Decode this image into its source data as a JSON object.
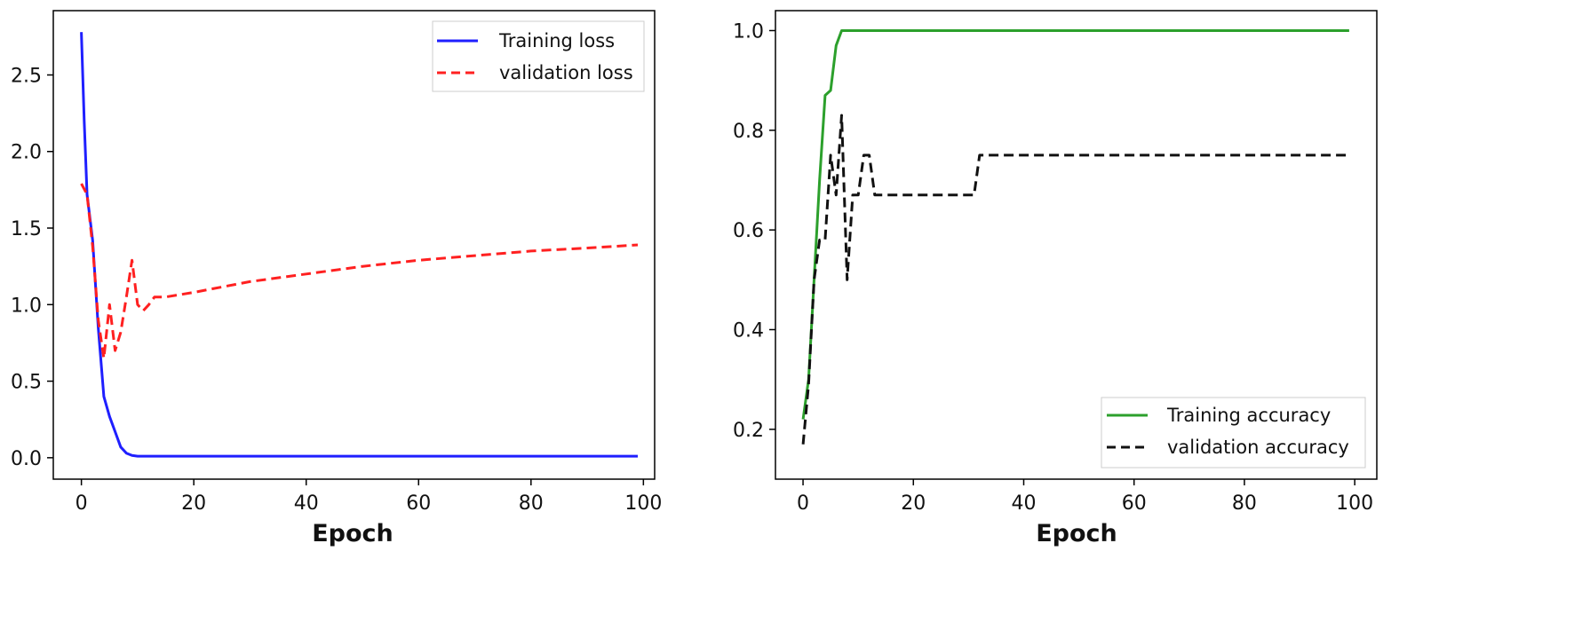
{
  "chart_data": [
    {
      "type": "line",
      "title": "",
      "xlabel": "Epoch",
      "ylabel": "",
      "xlim": [
        -5,
        102
      ],
      "ylim": [
        -0.14,
        2.92
      ],
      "xticks": [
        0,
        20,
        40,
        60,
        80,
        100
      ],
      "xtick_labels": [
        "0",
        "20",
        "40",
        "60",
        "80",
        "100"
      ],
      "yticks": [
        0.0,
        0.5,
        1.0,
        1.5,
        2.0,
        2.5
      ],
      "ytick_labels": [
        "0.0",
        "0.5",
        "1.0",
        "1.5",
        "2.0",
        "2.5"
      ],
      "grid": false,
      "legend": "top-right",
      "series": [
        {
          "name": "Training loss",
          "color": "#1f1fff",
          "style": "solid",
          "points": [
            [
              0,
              2.78
            ],
            [
              0.5,
              2.2
            ],
            [
              1,
              1.72
            ],
            [
              2,
              1.42
            ],
            [
              3,
              0.85
            ],
            [
              4,
              0.4
            ],
            [
              5,
              0.27
            ],
            [
              6,
              0.17
            ],
            [
              7,
              0.07
            ],
            [
              8,
              0.03
            ],
            [
              9,
              0.015
            ],
            [
              10,
              0.01
            ],
            [
              99,
              0.01
            ]
          ]
        },
        {
          "name": "validation loss",
          "color": "#ff2020",
          "style": "dashed",
          "points": [
            [
              0,
              1.79
            ],
            [
              1,
              1.72
            ],
            [
              2,
              1.38
            ],
            [
              3,
              0.9
            ],
            [
              4,
              0.65
            ],
            [
              5,
              1.0
            ],
            [
              6,
              0.7
            ],
            [
              7,
              0.82
            ],
            [
              8,
              1.05
            ],
            [
              9,
              1.29
            ],
            [
              10,
              1.0
            ],
            [
              11,
              0.96
            ],
            [
              12,
              1.0
            ],
            [
              13,
              1.05
            ],
            [
              15,
              1.05
            ],
            [
              20,
              1.08
            ],
            [
              30,
              1.15
            ],
            [
              40,
              1.2
            ],
            [
              50,
              1.25
            ],
            [
              60,
              1.29
            ],
            [
              70,
              1.32
            ],
            [
              80,
              1.35
            ],
            [
              90,
              1.37
            ],
            [
              99,
              1.39
            ]
          ]
        }
      ]
    },
    {
      "type": "line",
      "title": "",
      "xlabel": "Epoch",
      "ylabel": "",
      "xlim": [
        -5,
        104
      ],
      "ylim": [
        0.1,
        1.04
      ],
      "xticks": [
        0,
        20,
        40,
        60,
        80,
        100
      ],
      "xtick_labels": [
        "0",
        "20",
        "40",
        "60",
        "80",
        "100"
      ],
      "yticks": [
        0.2,
        0.4,
        0.6,
        0.8,
        1.0
      ],
      "ytick_labels": [
        "0.2",
        "0.4",
        "0.6",
        "0.8",
        "1.0"
      ],
      "grid": false,
      "legend": "bottom-right",
      "series": [
        {
          "name": "Training accuracy",
          "color": "#2ca02c",
          "style": "solid",
          "points": [
            [
              0,
              0.22
            ],
            [
              1,
              0.3
            ],
            [
              2,
              0.5
            ],
            [
              3,
              0.7
            ],
            [
              4,
              0.87
            ],
            [
              5,
              0.88
            ],
            [
              6,
              0.97
            ],
            [
              7,
              1.0
            ],
            [
              99,
              1.0
            ]
          ]
        },
        {
          "name": "validation accuracy",
          "color": "#111111",
          "style": "dashed",
          "points": [
            [
              0,
              0.17
            ],
            [
              1,
              0.29
            ],
            [
              2,
              0.5
            ],
            [
              3,
              0.58
            ],
            [
              4,
              0.58
            ],
            [
              5,
              0.75
            ],
            [
              6,
              0.67
            ],
            [
              7,
              0.83
            ],
            [
              8,
              0.5
            ],
            [
              9,
              0.67
            ],
            [
              10,
              0.67
            ],
            [
              11,
              0.75
            ],
            [
              12,
              0.75
            ],
            [
              13,
              0.67
            ],
            [
              31,
              0.67
            ],
            [
              32,
              0.75
            ],
            [
              99,
              0.75
            ]
          ]
        }
      ]
    }
  ]
}
